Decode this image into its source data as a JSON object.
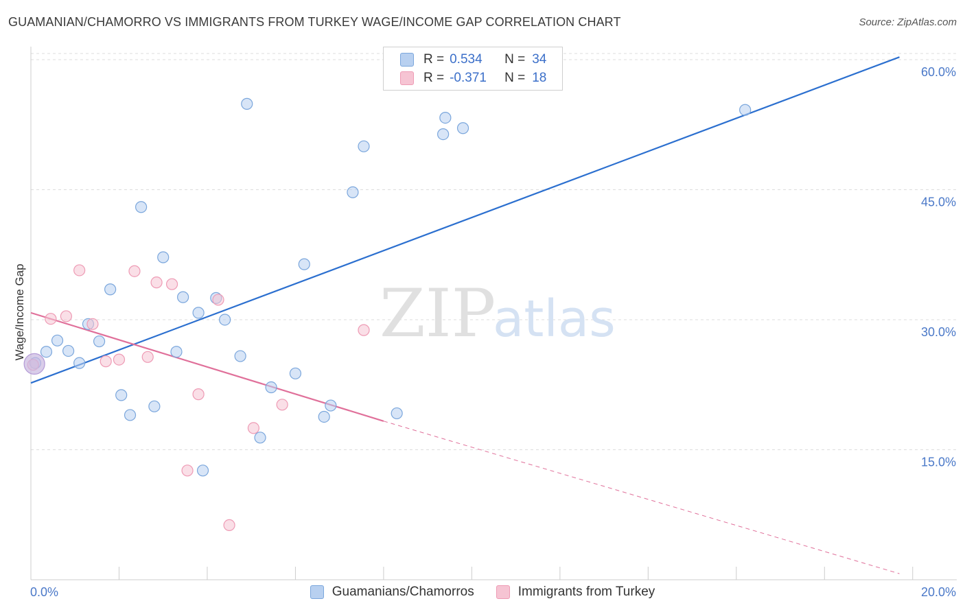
{
  "header": {
    "title": "GUAMANIAN/CHAMORRO VS IMMIGRANTS FROM TURKEY WAGE/INCOME GAP CORRELATION CHART",
    "source": "Source: ZipAtlas.com"
  },
  "legend": {
    "rows": [
      {
        "r_label": "R =",
        "r_value": "0.534",
        "n_label": "N =",
        "n_value": "34"
      },
      {
        "r_label": "R =",
        "r_value": "-0.371",
        "n_label": "N =",
        "n_value": "18"
      }
    ]
  },
  "watermark": {
    "zip": "ZIP",
    "atlas": "atlas"
  },
  "colors": {
    "blue_fill": "#b8d0f0",
    "blue_stroke": "#7aa6dc",
    "blue_line": "#2b6fcf",
    "pink_fill": "#f6c4d3",
    "pink_stroke": "#ee9ab4",
    "pink_line": "#e0709a",
    "grid": "#dcdcdc",
    "tick_text": "#4a78c8"
  },
  "chart_data": {
    "type": "scatter",
    "title": "GUAMANIAN/CHAMORRO VS IMMIGRANTS FROM TURKEY WAGE/INCOME GAP CORRELATION CHART",
    "xlabel": "",
    "ylabel": "Wage/Income Gap",
    "xlim": [
      0,
      21
    ],
    "ylim": [
      0,
      61.5
    ],
    "x_tick_labels": [
      "0.0%",
      "20.0%"
    ],
    "y_ticks": [
      15,
      30,
      45,
      60
    ],
    "y_tick_labels": [
      "15.0%",
      "30.0%",
      "45.0%",
      "60.0%"
    ],
    "series": [
      {
        "name": "Guamanians/Chamorros",
        "color": "blue",
        "points": [
          [
            0.1,
            25.0
          ],
          [
            0.35,
            26.3
          ],
          [
            0.6,
            27.6
          ],
          [
            0.85,
            26.4
          ],
          [
            1.1,
            25.0
          ],
          [
            1.3,
            29.5
          ],
          [
            1.55,
            27.5
          ],
          [
            1.8,
            33.5
          ],
          [
            2.05,
            21.3
          ],
          [
            2.25,
            19.0
          ],
          [
            2.5,
            43.0
          ],
          [
            2.8,
            20.0
          ],
          [
            3.0,
            37.2
          ],
          [
            3.3,
            26.3
          ],
          [
            3.45,
            32.6
          ],
          [
            3.8,
            30.8
          ],
          [
            3.9,
            12.6
          ],
          [
            4.2,
            32.5
          ],
          [
            4.4,
            30.0
          ],
          [
            4.75,
            25.8
          ],
          [
            4.9,
            54.9
          ],
          [
            5.2,
            16.4
          ],
          [
            5.45,
            22.2
          ],
          [
            6.0,
            23.8
          ],
          [
            6.2,
            36.4
          ],
          [
            6.65,
            18.8
          ],
          [
            6.8,
            20.1
          ],
          [
            7.3,
            44.7
          ],
          [
            7.55,
            50.0
          ],
          [
            8.3,
            19.2
          ],
          [
            9.35,
            51.4
          ],
          [
            9.4,
            53.3
          ],
          [
            9.8,
            52.1
          ],
          [
            16.2,
            54.2
          ]
        ]
      },
      {
        "name": "Immigrants from Turkey",
        "color": "pink",
        "points": [
          [
            0.05,
            24.8
          ],
          [
            0.45,
            30.1
          ],
          [
            0.8,
            30.4
          ],
          [
            1.1,
            35.7
          ],
          [
            1.4,
            29.5
          ],
          [
            1.7,
            25.2
          ],
          [
            2.0,
            25.4
          ],
          [
            2.35,
            35.6
          ],
          [
            2.65,
            25.7
          ],
          [
            2.85,
            34.3
          ],
          [
            3.2,
            34.1
          ],
          [
            3.55,
            12.6
          ],
          [
            3.8,
            21.4
          ],
          [
            4.25,
            32.3
          ],
          [
            4.5,
            6.3
          ],
          [
            5.05,
            17.5
          ],
          [
            5.7,
            20.2
          ],
          [
            7.55,
            28.8
          ]
        ]
      }
    ],
    "trend_lines": [
      {
        "series": "Guamanians/Chamorros",
        "from": [
          0,
          22.7
        ],
        "to": [
          19.7,
          60.3
        ],
        "style": "solid"
      },
      {
        "series": "Immigrants from Turkey",
        "from": [
          0,
          30.8
        ],
        "to": [
          8.0,
          18.3
        ],
        "style": "solid"
      },
      {
        "series": "Immigrants from Turkey",
        "from": [
          8.0,
          18.3
        ],
        "to": [
          19.7,
          0.7
        ],
        "style": "dashed"
      }
    ],
    "legend_position": "top-center",
    "grid": true
  }
}
